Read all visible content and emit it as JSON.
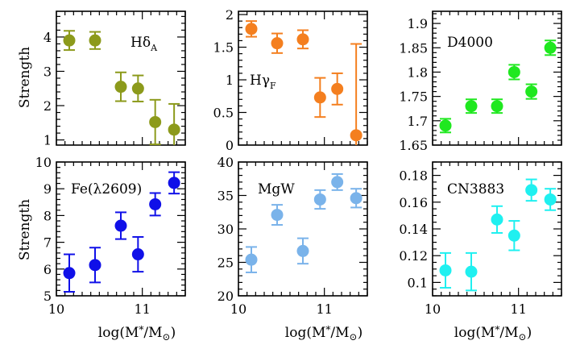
{
  "figure": {
    "ylabel_top": "Strength",
    "ylabel_bottom": "Strength",
    "xlabel": "log(M",
    "xlabel_star": "*",
    "xlabel_slash": "/M",
    "xlabel_sun": "⊙",
    "xlabel_close": ")"
  },
  "chart_data": [
    {
      "type": "scatter",
      "title": "Hδ",
      "title_sub": "A",
      "color": "#8c9a1b",
      "xlim": [
        10,
        11.5
      ],
      "ylim": [
        0.85,
        4.75
      ],
      "yticks": [
        1,
        2,
        3,
        4
      ],
      "yminor": 0.2,
      "x": [
        10.15,
        10.45,
        10.75,
        10.95,
        11.15,
        11.37
      ],
      "y": [
        3.9,
        3.9,
        2.55,
        2.5,
        1.52,
        1.3
      ],
      "err": [
        0.28,
        0.25,
        0.42,
        0.38,
        0.65,
        0.75
      ]
    },
    {
      "type": "scatter",
      "title": "Hγ",
      "title_sub": "F",
      "color": "#f47f1f",
      "xlim": [
        10,
        11.5
      ],
      "ylim": [
        0,
        2.05
      ],
      "yticks": [
        0,
        0.5,
        1,
        1.5,
        2
      ],
      "yminor": 0.1,
      "x": [
        10.15,
        10.45,
        10.75,
        10.95,
        11.15,
        11.37
      ],
      "y": [
        1.78,
        1.56,
        1.62,
        0.73,
        0.86,
        0.15
      ],
      "err": [
        0.12,
        0.15,
        0.14,
        0.3,
        0.24,
        1.4
      ]
    },
    {
      "type": "scatter",
      "title": "D4000",
      "title_sub": "",
      "color": "#1fe81f",
      "xlim": [
        10,
        11.5
      ],
      "ylim": [
        1.65,
        1.925
      ],
      "yticks": [
        1.65,
        1.7,
        1.75,
        1.8,
        1.85,
        1.9
      ],
      "yminor": 0.01,
      "x": [
        10.15,
        10.45,
        10.75,
        10.95,
        11.15,
        11.37
      ],
      "y": [
        1.69,
        1.73,
        1.73,
        1.8,
        1.76,
        1.85
      ],
      "err": [
        0.014,
        0.014,
        0.014,
        0.015,
        0.015,
        0.015
      ]
    },
    {
      "type": "scatter",
      "title": "Fe(λ2609)",
      "title_sub": "",
      "color": "#1010e8",
      "xlim": [
        10,
        11.5
      ],
      "ylim": [
        5,
        10
      ],
      "yticks": [
        5,
        6,
        7,
        8,
        9,
        10
      ],
      "yminor": 0.2,
      "x": [
        10.15,
        10.45,
        10.75,
        10.95,
        11.15,
        11.37
      ],
      "y": [
        5.85,
        6.15,
        7.62,
        6.55,
        8.42,
        9.22
      ],
      "err": [
        0.7,
        0.65,
        0.5,
        0.65,
        0.42,
        0.4
      ]
    },
    {
      "type": "scatter",
      "title": "MgW",
      "title_sub": "",
      "color": "#7ab3ea",
      "xlim": [
        10,
        11.5
      ],
      "ylim": [
        20,
        40
      ],
      "yticks": [
        20,
        25,
        30,
        35,
        40
      ],
      "yminor": 1,
      "x": [
        10.15,
        10.45,
        10.75,
        10.95,
        11.15,
        11.37
      ],
      "y": [
        25.4,
        32.1,
        26.7,
        34.4,
        37.0,
        34.6
      ],
      "err": [
        1.9,
        1.5,
        1.9,
        1.4,
        1.2,
        1.4
      ]
    },
    {
      "type": "scatter",
      "title": "CN3883",
      "title_sub": "",
      "color": "#1ff0f0",
      "xlim": [
        10,
        11.5
      ],
      "ylim": [
        0.09,
        0.19
      ],
      "yticks": [
        0.1,
        0.12,
        0.14,
        0.16,
        0.18
      ],
      "yminor": 0.005,
      "x": [
        10.15,
        10.45,
        10.75,
        10.95,
        11.15,
        11.37
      ],
      "y": [
        0.109,
        0.108,
        0.147,
        0.135,
        0.169,
        0.162
      ],
      "err": [
        0.013,
        0.014,
        0.01,
        0.011,
        0.008,
        0.008
      ]
    }
  ],
  "xaxis": {
    "ticks": [
      10,
      11
    ],
    "tick_labels": [
      "10",
      "11"
    ],
    "minor": 0.1
  }
}
